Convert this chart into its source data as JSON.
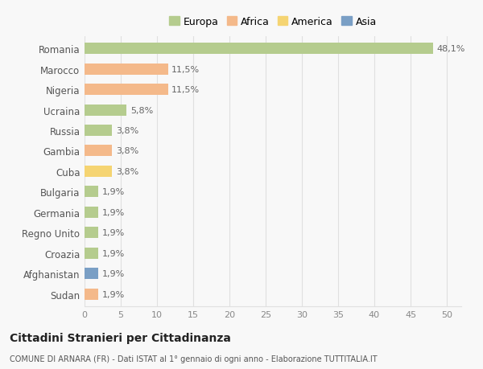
{
  "countries": [
    "Romania",
    "Marocco",
    "Nigeria",
    "Ucraina",
    "Russia",
    "Gambia",
    "Cuba",
    "Bulgaria",
    "Germania",
    "Regno Unito",
    "Croazia",
    "Afghanistan",
    "Sudan"
  ],
  "values": [
    48.1,
    11.5,
    11.5,
    5.8,
    3.8,
    3.8,
    3.8,
    1.9,
    1.9,
    1.9,
    1.9,
    1.9,
    1.9
  ],
  "labels": [
    "48,1%",
    "11,5%",
    "11,5%",
    "5,8%",
    "3,8%",
    "3,8%",
    "3,8%",
    "1,9%",
    "1,9%",
    "1,9%",
    "1,9%",
    "1,9%",
    "1,9%"
  ],
  "colors": [
    "#b5cc8e",
    "#f4b98a",
    "#f4b98a",
    "#b5cc8e",
    "#b5cc8e",
    "#f4b98a",
    "#f5d472",
    "#b5cc8e",
    "#b5cc8e",
    "#b5cc8e",
    "#b5cc8e",
    "#7a9fc5",
    "#f4b98a"
  ],
  "legend": [
    {
      "label": "Europa",
      "color": "#b5cc8e"
    },
    {
      "label": "Africa",
      "color": "#f4b98a"
    },
    {
      "label": "America",
      "color": "#f5d472"
    },
    {
      "label": "Asia",
      "color": "#7a9fc5"
    }
  ],
  "title": "Cittadini Stranieri per Cittadinanza",
  "subtitle": "COMUNE DI ARNARA (FR) - Dati ISTAT al 1° gennaio di ogni anno - Elaborazione TUTTITALIA.IT",
  "xlim": [
    0,
    52
  ],
  "xticks": [
    0,
    5,
    10,
    15,
    20,
    25,
    30,
    35,
    40,
    45,
    50
  ],
  "background_color": "#f8f8f8",
  "grid_color": "#e0e0e0",
  "bar_height": 0.55
}
